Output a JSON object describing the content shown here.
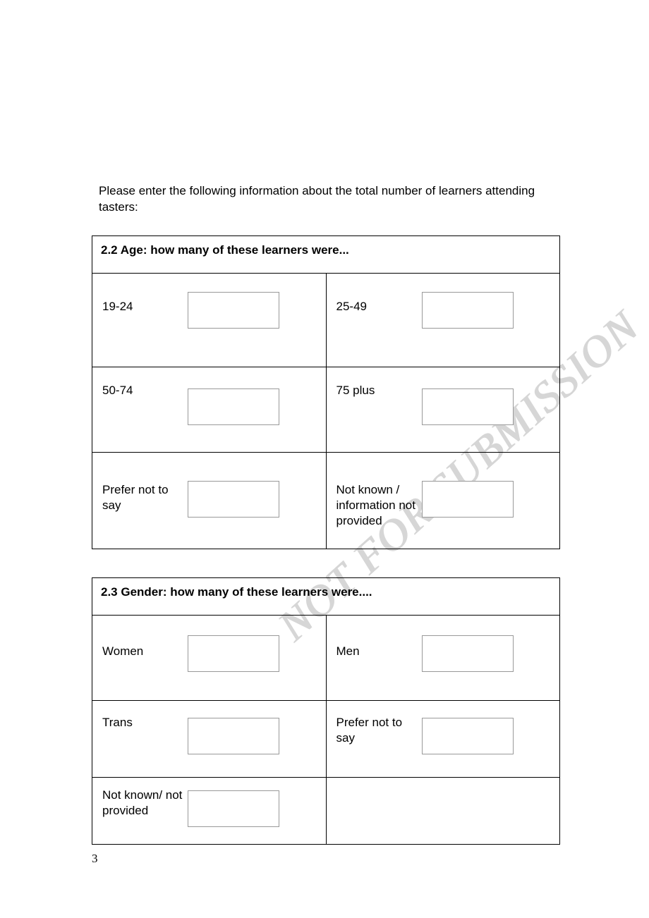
{
  "intro": "Please enter the following information about the total number of learners attending tasters:",
  "watermark": "NOT FOR SUBMISSION",
  "page_number": "3",
  "tables": {
    "age": {
      "heading": "2.2 Age: how many of these learners were...",
      "rows": [
        {
          "left": {
            "label": "19-24",
            "value": ""
          },
          "right": {
            "label": "25-49",
            "value": ""
          }
        },
        {
          "left": {
            "label": "50-74",
            "value": ""
          },
          "right": {
            "label": "75 plus",
            "value": ""
          }
        },
        {
          "left": {
            "label": "Prefer not to say",
            "value": ""
          },
          "right": {
            "label": "Not known / information not provided",
            "value": ""
          }
        }
      ]
    },
    "gender": {
      "heading": "2.3 Gender: how many of these learners were....",
      "rows": [
        {
          "left": {
            "label": "Women",
            "value": ""
          },
          "right": {
            "label": "Men",
            "value": ""
          }
        },
        {
          "left": {
            "label": "Trans",
            "value": ""
          },
          "right": {
            "label": "Prefer not to say",
            "value": ""
          }
        },
        {
          "left": {
            "label": "Not known/ not provided",
            "value": ""
          },
          "right": null
        }
      ]
    }
  },
  "colors": {
    "text": "#000000",
    "border": "#000000",
    "input_border": "#999999",
    "background": "#ffffff",
    "watermark": "#b5b5b5"
  },
  "fonts": {
    "body": "Arial",
    "body_size_pt": 12,
    "heading_weight": "bold"
  }
}
